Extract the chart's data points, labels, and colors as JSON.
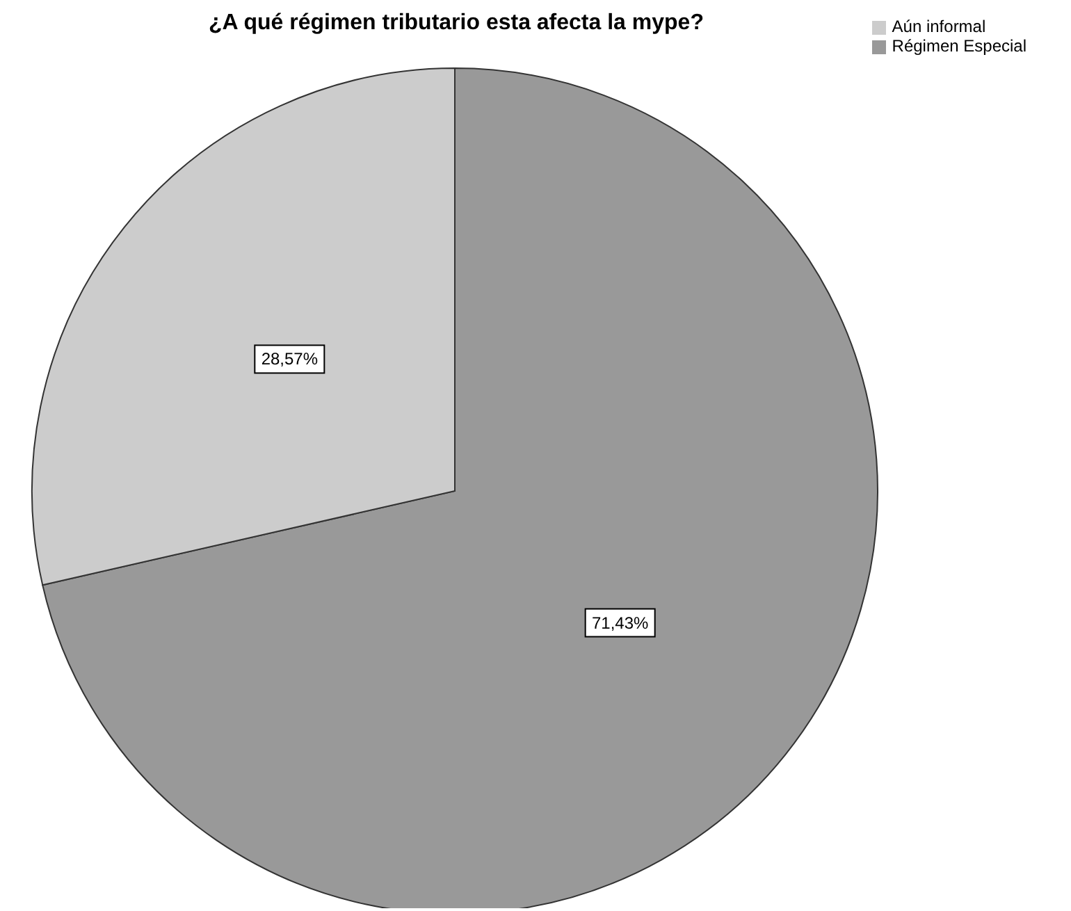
{
  "chart_data": {
    "type": "pie",
    "title": "¿A qué régimen tributario esta afecta la mype?",
    "categories": [
      "Régimen Especial",
      "Aún informal"
    ],
    "values": [
      71.43,
      28.57
    ],
    "colors": [
      "#999999",
      "#cccccc"
    ],
    "value_labels": [
      "71,43%",
      "28,57%"
    ],
    "legend": "top right"
  }
}
